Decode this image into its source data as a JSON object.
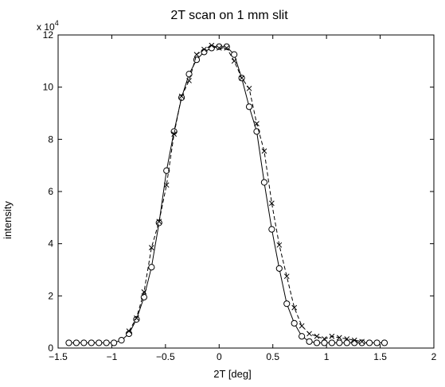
{
  "chart_data": {
    "type": "line",
    "title": "2T scan on 1 mm slit",
    "xlabel": "2T [deg]",
    "ylabel": "intensity",
    "y_exponent_label": "x 10",
    "y_exponent_power": "4",
    "xlim": [
      -1.5,
      2
    ],
    "ylim": [
      0,
      12
    ],
    "xticks": [
      -1.5,
      -1,
      -0.5,
      0,
      0.5,
      1,
      1.5,
      2
    ],
    "xtick_labels": [
      "−1.5",
      "−1",
      "−0.5",
      "0",
      "0.5",
      "1",
      "1.5",
      "2"
    ],
    "yticks": [
      0,
      2,
      4,
      6,
      8,
      10,
      12
    ],
    "ytick_labels": [
      "0",
      "2",
      "4",
      "6",
      "8",
      "10",
      "12"
    ],
    "grid": false,
    "line_color": "#000000",
    "series": [
      {
        "style": "solid",
        "marker": "circle",
        "x": [
          -1.4,
          -1.33,
          -1.26,
          -1.19,
          -1.12,
          -1.05,
          -0.98,
          -0.91,
          -0.84,
          -0.77,
          -0.7,
          -0.63,
          -0.56,
          -0.49,
          -0.42,
          -0.35,
          -0.28,
          -0.21,
          -0.14,
          -0.07,
          0.0,
          0.07,
          0.14,
          0.21,
          0.28,
          0.35,
          0.42,
          0.49,
          0.56,
          0.63,
          0.7,
          0.77,
          0.84,
          0.91,
          0.98,
          1.05,
          1.12,
          1.19,
          1.26,
          1.33,
          1.4,
          1.47,
          1.54
        ],
        "y": [
          0.2,
          0.2,
          0.2,
          0.2,
          0.2,
          0.2,
          0.2,
          0.3,
          0.55,
          1.1,
          1.95,
          3.1,
          4.8,
          6.8,
          8.3,
          9.6,
          10.5,
          11.05,
          11.35,
          11.5,
          11.55,
          11.55,
          11.25,
          10.35,
          9.25,
          8.3,
          6.35,
          4.55,
          3.05,
          1.7,
          0.95,
          0.45,
          0.25,
          0.2,
          0.2,
          0.2,
          0.2,
          0.2,
          0.2,
          0.2,
          0.2,
          0.2,
          0.2
        ]
      },
      {
        "style": "dashed",
        "marker": "x",
        "x": [
          -0.84,
          -0.77,
          -0.7,
          -0.63,
          -0.56,
          -0.49,
          -0.42,
          -0.35,
          -0.28,
          -0.21,
          -0.14,
          -0.07,
          0.0,
          0.07,
          0.14,
          0.21,
          0.28,
          0.35,
          0.42,
          0.49,
          0.56,
          0.63,
          0.7,
          0.77,
          0.84,
          0.91,
          0.98,
          1.05,
          1.12,
          1.19,
          1.26,
          1.33
        ],
        "y": [
          0.65,
          1.15,
          2.15,
          3.85,
          4.85,
          6.25,
          8.2,
          9.65,
          10.25,
          11.25,
          11.45,
          11.6,
          11.5,
          11.5,
          11.0,
          10.35,
          9.95,
          8.6,
          7.55,
          5.55,
          3.95,
          2.75,
          1.55,
          0.85,
          0.55,
          0.45,
          0.35,
          0.45,
          0.4,
          0.35,
          0.3,
          0.25
        ]
      }
    ]
  }
}
